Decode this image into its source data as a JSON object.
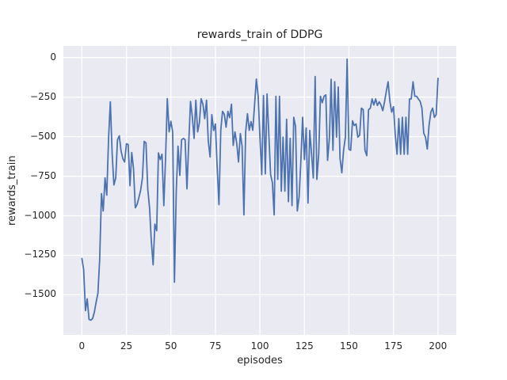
{
  "chart_data": {
    "type": "line",
    "title": "rewards_train of DDPG",
    "xlabel": "episodes",
    "ylabel": "rewards_train",
    "grid": true,
    "legend": "none",
    "background_color": "#eaeaf2",
    "gridline_color": "#ffffff",
    "line_color": "#4c72b0",
    "text_color": "#262626",
    "x_ticks": [
      0,
      25,
      50,
      75,
      100,
      125,
      150,
      175,
      200
    ],
    "x_tick_labels": [
      "0",
      "25",
      "50",
      "75",
      "100",
      "125",
      "150",
      "175",
      "200"
    ],
    "y_ticks": [
      0,
      -250,
      -500,
      -750,
      -1000,
      -1250,
      -1500
    ],
    "y_tick_labels": [
      "0",
      "−250",
      "−500",
      "−750",
      "−1000",
      "−1250",
      "−1500"
    ],
    "xlim": [
      -10.4,
      210.3
    ],
    "ylim": [
      -1753,
      73.5
    ],
    "series": [
      {
        "name": "rewards_train",
        "x_start": 0,
        "x_step": 1,
        "values": [
          -1270,
          -1340,
          -1600,
          -1525,
          -1655,
          -1660,
          -1650,
          -1610,
          -1545,
          -1490,
          -1280,
          -860,
          -970,
          -760,
          -870,
          -505,
          -280,
          -610,
          -805,
          -760,
          -520,
          -495,
          -590,
          -640,
          -660,
          -545,
          -550,
          -810,
          -600,
          -700,
          -950,
          -930,
          -886,
          -840,
          -760,
          -530,
          -540,
          -830,
          -950,
          -1160,
          -1310,
          -1053,
          -1095,
          -603,
          -645,
          -611,
          -936,
          -636,
          -260,
          -470,
          -403,
          -470,
          -1420,
          -845,
          -560,
          -745,
          -520,
          -511,
          -520,
          -830,
          -545,
          -278,
          -370,
          -511,
          -270,
          -470,
          -411,
          -261,
          -295,
          -386,
          -270,
          -528,
          -628,
          -361,
          -461,
          -420,
          -700,
          -930,
          -460,
          -340,
          -360,
          -440,
          -340,
          -380,
          -295,
          -555,
          -470,
          -545,
          -660,
          -480,
          -560,
          -995,
          -470,
          -355,
          -460,
          -405,
          -460,
          -295,
          -136,
          -245,
          -500,
          -740,
          -240,
          -735,
          -230,
          -480,
          -740,
          -790,
          -995,
          -245,
          -770,
          -245,
          -845,
          -503,
          -845,
          -390,
          -911,
          -511,
          -936,
          -378,
          -436,
          -970,
          -880,
          -653,
          -378,
          -645,
          -445,
          -920,
          -461,
          -611,
          -761,
          -120,
          -770,
          -611,
          -245,
          -286,
          -245,
          -236,
          -650,
          -510,
          -137,
          -586,
          -153,
          -503,
          -186,
          -636,
          -728,
          -586,
          -503,
          -10,
          -580,
          -586,
          -400,
          -430,
          -420,
          -503,
          -490,
          -320,
          -330,
          -586,
          -620,
          -330,
          -320,
          -262,
          -300,
          -262,
          -303,
          -280,
          -300,
          -336,
          -280,
          -212,
          -153,
          -278,
          -345,
          -311,
          -486,
          -611,
          -386,
          -611,
          -378,
          -611,
          -378,
          -611,
          -262,
          -262,
          -153,
          -245,
          -245,
          -262,
          -278,
          -320,
          -478,
          -503,
          -578,
          -428,
          -345,
          -320,
          -378,
          -361,
          -131
        ]
      }
    ]
  }
}
